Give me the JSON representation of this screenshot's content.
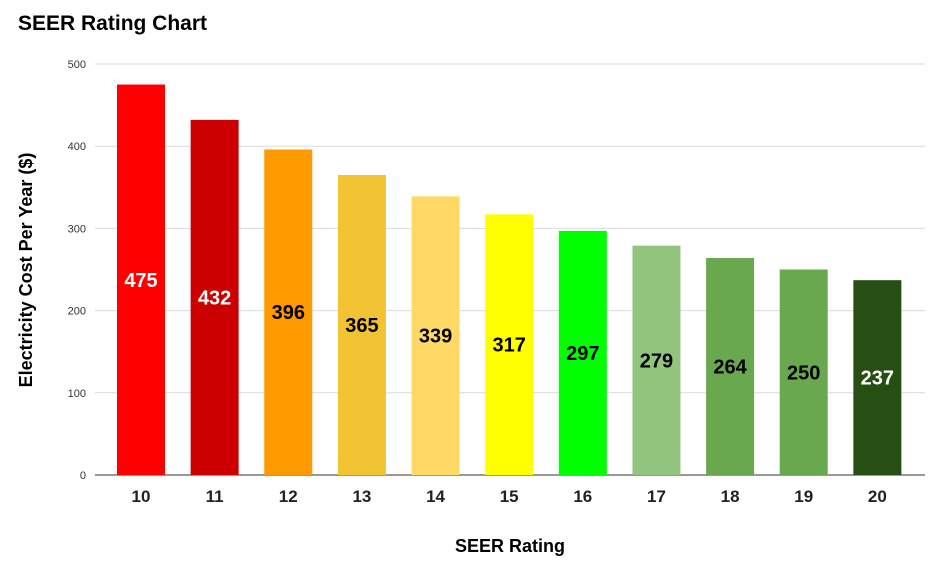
{
  "chart_data": {
    "type": "bar",
    "title": "SEER Rating Chart",
    "xlabel": "SEER Rating",
    "ylabel": "Electricity Cost Per Year ($)",
    "ylim": [
      0,
      500
    ],
    "yticks": [
      0,
      100,
      200,
      300,
      400,
      500
    ],
    "grid": true,
    "categories": [
      "10",
      "11",
      "12",
      "13",
      "14",
      "15",
      "16",
      "17",
      "18",
      "19",
      "20"
    ],
    "values": [
      475,
      432,
      396,
      365,
      339,
      317,
      297,
      279,
      264,
      250,
      237
    ],
    "bar_colors": [
      "#ff0000",
      "#cc0000",
      "#ff9900",
      "#f1c232",
      "#ffd966",
      "#ffff00",
      "#00ff00",
      "#93c47d",
      "#6aa84f",
      "#6aa84f",
      "#274e13"
    ],
    "label_colors": [
      "#ffffff",
      "#ffffff",
      "#000000",
      "#000000",
      "#000000",
      "#000000",
      "#000000",
      "#000000",
      "#000000",
      "#000000",
      "#ffffff"
    ]
  }
}
